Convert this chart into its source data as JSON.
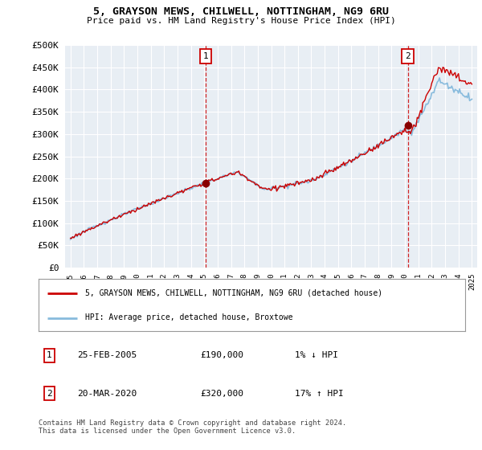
{
  "title": "5, GRAYSON MEWS, CHILWELL, NOTTINGHAM, NG9 6RU",
  "subtitle": "Price paid vs. HM Land Registry's House Price Index (HPI)",
  "legend_line1": "5, GRAYSON MEWS, CHILWELL, NOTTINGHAM, NG9 6RU (detached house)",
  "legend_line2": "HPI: Average price, detached house, Broxtowe",
  "annotation1_date": "25-FEB-2005",
  "annotation1_price": "£190,000",
  "annotation1_hpi": "1% ↓ HPI",
  "annotation2_date": "20-MAR-2020",
  "annotation2_price": "£320,000",
  "annotation2_hpi": "17% ↑ HPI",
  "footnote": "Contains HM Land Registry data © Crown copyright and database right 2024.\nThis data is licensed under the Open Government Licence v3.0.",
  "line_color_red": "#cc0000",
  "line_color_blue": "#88bbdd",
  "vline_color": "#cc0000",
  "background_color": "#ffffff",
  "plot_bg_color": "#e8eef4",
  "grid_color": "#ffffff",
  "sale1_x": 2005.12,
  "sale1_y": 190000,
  "sale2_x": 2020.22,
  "sale2_y": 320000,
  "ylim": [
    0,
    500000
  ],
  "yticks": [
    0,
    50000,
    100000,
    150000,
    200000,
    250000,
    300000,
    350000,
    400000,
    450000,
    500000
  ],
  "xlim_start": 1994.6,
  "xlim_end": 2025.4
}
